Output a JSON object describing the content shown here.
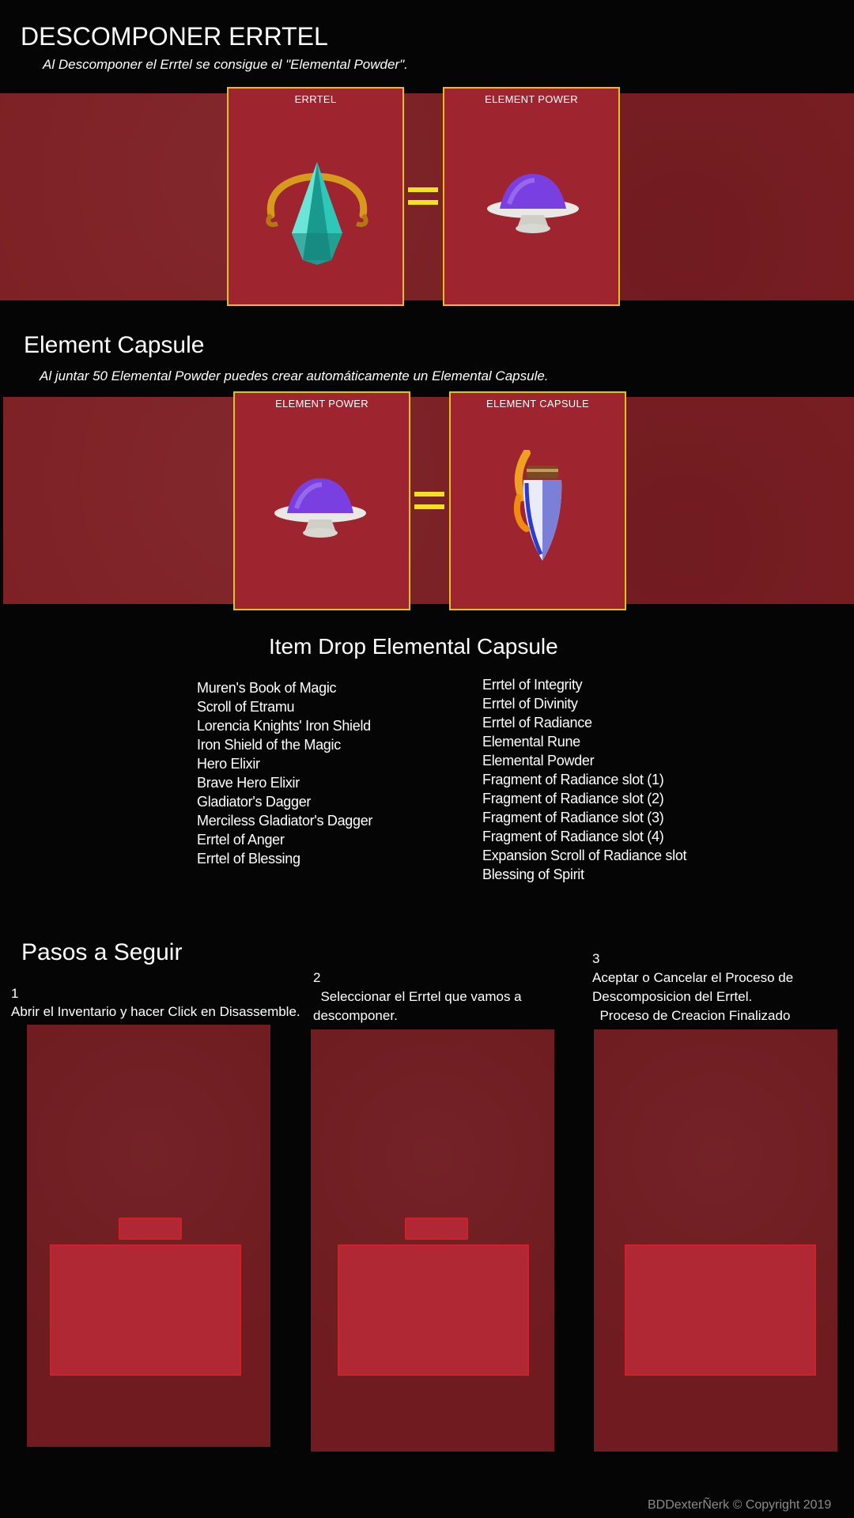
{
  "section1": {
    "title": "DESCOMPONER ERRTEL",
    "subtitle": "Al Descomponer el Errtel se consigue el \"Elemental Powder\".",
    "card_left_label": "ERRTEL",
    "card_right_label": "ELEMENT  POWER"
  },
  "section2": {
    "title": "Element Capsule",
    "subtitle": "Al juntar 50 Elemental Powder puedes crear automáticamente un Elemental Capsule.",
    "card_left_label": "ELEMENT POWER",
    "card_right_label": "ELEMENT CAPSULE"
  },
  "drops": {
    "title": "Item Drop Elemental Capsule",
    "left": [
      "Muren's Book of Magic",
      "Scroll of Etramu",
      "Lorencia Knights' Iron Shield",
      "Iron Shield of the Magic",
      "Hero Elixir",
      "Brave Hero Elixir",
      "Gladiator's Dagger",
      "Merciless Gladiator's Dagger",
      "Errtel of Anger",
      "Errtel of Blessing"
    ],
    "right": [
      "Errtel of Integrity",
      "Errtel of Divinity",
      "Errtel of Radiance",
      "Elemental Rune",
      "Elemental Powder",
      "Fragment of Radiance slot (1)",
      "Fragment of Radiance slot (2)",
      "Fragment of Radiance slot (3)",
      "Fragment of Radiance slot (4)",
      "Expansion Scroll of Radiance slot",
      "Blessing of Spirit"
    ]
  },
  "steps": {
    "title": "Pasos a Seguir",
    "step1": {
      "num": "1",
      "line1": "Abrir el Inventario y hacer Click en Disassemble."
    },
    "step2": {
      "num": "2",
      "line1": "  Seleccionar el Errtel que vamos a",
      "line2": "descomponer."
    },
    "step3": {
      "num": "3",
      "line1": "Aceptar o Cancelar el Proceso de",
      "line2": "Descomposicion del Errtel.",
      "line3": "  Proceso de Creacion Finalizado"
    }
  },
  "footer": {
    "copyright": "BDDexterÑerk © Copyright 2019"
  },
  "colors": {
    "band": "#7d1f24",
    "card": "#9e252f",
    "card_border": "#e0c21a",
    "equals": "#f2e21e"
  }
}
